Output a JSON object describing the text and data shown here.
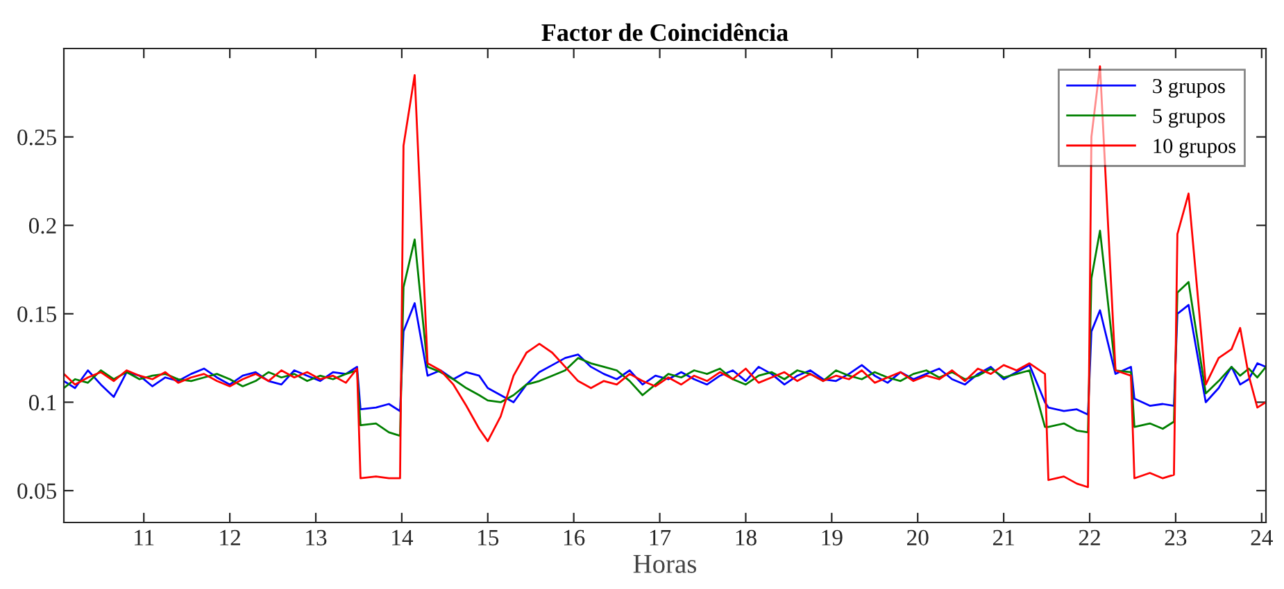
{
  "chart_data": {
    "type": "line",
    "title": "Factor de Coincidência",
    "xlabel": "Horas",
    "x": [
      10.07,
      10.2,
      10.35,
      10.5,
      10.65,
      10.8,
      10.95,
      11.1,
      11.25,
      11.4,
      11.55,
      11.7,
      11.85,
      12.0,
      12.15,
      12.3,
      12.45,
      12.6,
      12.75,
      12.9,
      13.05,
      13.2,
      13.35,
      13.48,
      13.52,
      13.7,
      13.85,
      13.98,
      14.02,
      14.15,
      14.3,
      14.45,
      14.6,
      14.75,
      14.9,
      15.0,
      15.15,
      15.3,
      15.45,
      15.6,
      15.75,
      15.9,
      16.05,
      16.2,
      16.35,
      16.5,
      16.65,
      16.8,
      16.95,
      17.1,
      17.25,
      17.4,
      17.55,
      17.7,
      17.85,
      18.0,
      18.15,
      18.3,
      18.45,
      18.6,
      18.75,
      18.9,
      19.05,
      19.2,
      19.35,
      19.5,
      19.65,
      19.8,
      19.95,
      20.1,
      20.25,
      20.4,
      20.55,
      20.7,
      20.85,
      21.0,
      21.15,
      21.3,
      21.48,
      21.52,
      21.7,
      21.85,
      21.98,
      22.02,
      22.12,
      22.3,
      22.48,
      22.52,
      22.7,
      22.85,
      22.98,
      23.02,
      23.15,
      23.35,
      23.5,
      23.65,
      23.75,
      23.85,
      23.95,
      24.05
    ],
    "series": [
      {
        "name": "3 grupos",
        "color": "#0000ff",
        "values": [
          0.112,
          0.108,
          0.118,
          0.11,
          0.103,
          0.117,
          0.115,
          0.109,
          0.114,
          0.112,
          0.116,
          0.119,
          0.114,
          0.11,
          0.115,
          0.117,
          0.112,
          0.11,
          0.118,
          0.115,
          0.112,
          0.117,
          0.116,
          0.12,
          0.096,
          0.097,
          0.099,
          0.095,
          0.14,
          0.156,
          0.115,
          0.118,
          0.113,
          0.117,
          0.115,
          0.108,
          0.104,
          0.1,
          0.11,
          0.117,
          0.121,
          0.125,
          0.127,
          0.12,
          0.116,
          0.113,
          0.118,
          0.11,
          0.115,
          0.113,
          0.117,
          0.113,
          0.11,
          0.115,
          0.118,
          0.112,
          0.12,
          0.116,
          0.11,
          0.115,
          0.118,
          0.113,
          0.112,
          0.116,
          0.121,
          0.115,
          0.111,
          0.117,
          0.113,
          0.116,
          0.119,
          0.113,
          0.11,
          0.116,
          0.12,
          0.113,
          0.117,
          0.121,
          0.1,
          0.097,
          0.095,
          0.096,
          0.093,
          0.14,
          0.152,
          0.116,
          0.12,
          0.102,
          0.098,
          0.099,
          0.098,
          0.15,
          0.155,
          0.1,
          0.108,
          0.12,
          0.11,
          0.113,
          0.122,
          0.12
        ]
      },
      {
        "name": "5 grupos",
        "color": "#008000",
        "values": [
          0.108,
          0.113,
          0.111,
          0.118,
          0.113,
          0.117,
          0.113,
          0.115,
          0.116,
          0.113,
          0.112,
          0.114,
          0.116,
          0.113,
          0.109,
          0.112,
          0.117,
          0.114,
          0.116,
          0.112,
          0.115,
          0.113,
          0.116,
          0.118,
          0.087,
          0.088,
          0.083,
          0.081,
          0.165,
          0.192,
          0.12,
          0.117,
          0.113,
          0.108,
          0.104,
          0.101,
          0.1,
          0.104,
          0.11,
          0.112,
          0.115,
          0.118,
          0.125,
          0.122,
          0.12,
          0.118,
          0.112,
          0.104,
          0.11,
          0.116,
          0.114,
          0.118,
          0.116,
          0.119,
          0.113,
          0.11,
          0.115,
          0.117,
          0.113,
          0.118,
          0.116,
          0.112,
          0.118,
          0.115,
          0.113,
          0.117,
          0.114,
          0.112,
          0.116,
          0.118,
          0.114,
          0.117,
          0.113,
          0.115,
          0.119,
          0.114,
          0.116,
          0.118,
          0.086,
          0.086,
          0.088,
          0.084,
          0.083,
          0.17,
          0.197,
          0.118,
          0.117,
          0.086,
          0.088,
          0.085,
          0.089,
          0.162,
          0.168,
          0.105,
          0.112,
          0.12,
          0.115,
          0.119,
          0.114,
          0.12
        ]
      },
      {
        "name": "10 grupos",
        "color": "#ff0000",
        "values": [
          0.116,
          0.11,
          0.114,
          0.117,
          0.112,
          0.118,
          0.115,
          0.113,
          0.117,
          0.111,
          0.114,
          0.116,
          0.112,
          0.109,
          0.113,
          0.116,
          0.112,
          0.118,
          0.114,
          0.117,
          0.113,
          0.115,
          0.111,
          0.119,
          0.057,
          0.058,
          0.057,
          0.057,
          0.245,
          0.285,
          0.122,
          0.118,
          0.11,
          0.098,
          0.085,
          0.078,
          0.092,
          0.115,
          0.128,
          0.133,
          0.128,
          0.12,
          0.112,
          0.108,
          0.112,
          0.11,
          0.116,
          0.112,
          0.109,
          0.114,
          0.11,
          0.115,
          0.112,
          0.117,
          0.113,
          0.119,
          0.111,
          0.114,
          0.117,
          0.112,
          0.116,
          0.112,
          0.115,
          0.113,
          0.118,
          0.111,
          0.114,
          0.117,
          0.112,
          0.115,
          0.113,
          0.118,
          0.112,
          0.119,
          0.116,
          0.121,
          0.118,
          0.122,
          0.116,
          0.056,
          0.058,
          0.054,
          0.052,
          0.25,
          0.29,
          0.118,
          0.115,
          0.057,
          0.06,
          0.057,
          0.059,
          0.195,
          0.218,
          0.11,
          0.125,
          0.13,
          0.142,
          0.115,
          0.097,
          0.1
        ]
      }
    ],
    "xlim": [
      10.07,
      24.05
    ],
    "xticks": [
      11,
      12,
      13,
      14,
      15,
      16,
      17,
      18,
      19,
      20,
      21,
      22,
      23,
      24
    ],
    "ylim": [
      0.032,
      0.3
    ],
    "yticks": [
      0.05,
      0.1,
      0.15,
      0.2,
      0.25
    ],
    "grid": false,
    "legend": "top right",
    "line_style": "solid",
    "marker": "none"
  }
}
